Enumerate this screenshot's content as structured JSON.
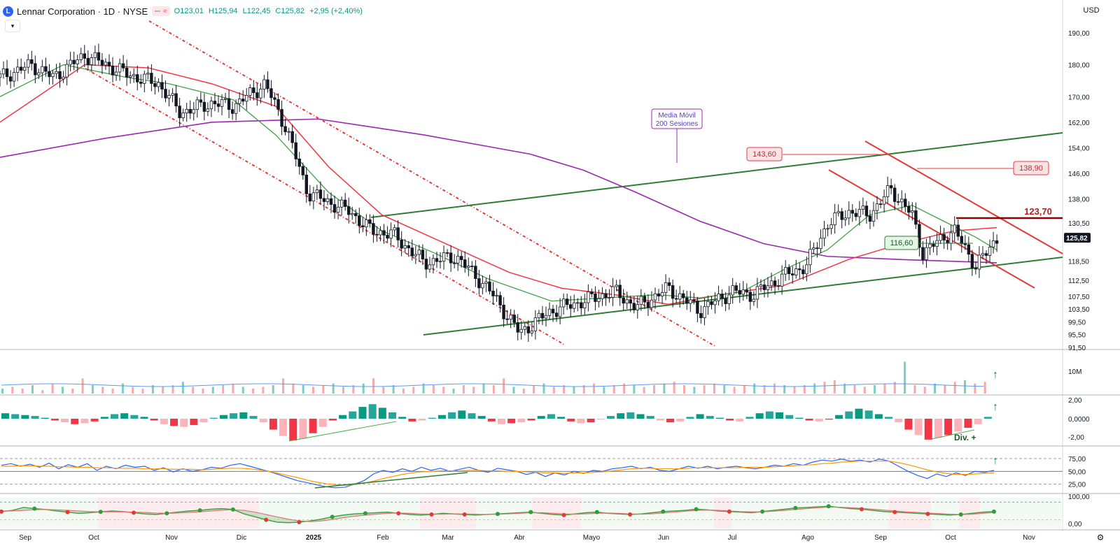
{
  "header": {
    "logo_letter": "L",
    "title": "Lennar Corporation · 1D · NYSE",
    "pill_text": "≈",
    "open": "O123,01",
    "high": "H125,94",
    "low": "L122,45",
    "close": "C125,82",
    "change": "+2,95 (+2,40%)",
    "collapse_icon": "chevron-down-icon",
    "currency": "USD"
  },
  "colors": {
    "up": "#089981",
    "down": "#f23645",
    "ma_fast": "#43a047",
    "ma_mid": "#f23645",
    "ma_200": "#9c27b0",
    "trend_green": "#2e7d32",
    "trend_red": "#e53935",
    "rsi": "#2962ff",
    "rsi_ma": "#ff9800"
  },
  "chart_data": [
    {
      "type": "candlestick",
      "title": "",
      "ylim": [
        91.5,
        194
      ],
      "y_ticks": [
        "190,00",
        "180,00",
        "170,00",
        "162,00",
        "154,00",
        "146,00",
        "138,00",
        "130,50",
        "125,82",
        "118,50",
        "112,50",
        "107,50",
        "103,50",
        "99,50",
        "95,50",
        "91,50"
      ],
      "x_ticks": [
        "Sep",
        "Oct",
        "Nov",
        "Dic",
        "2025",
        "Feb",
        "Mar",
        "Abr",
        "Mayo",
        "Jun",
        "Jul",
        "Ago",
        "Sep",
        "Oct",
        "Nov"
      ],
      "last_price": "125,82",
      "close_points": [
        {
          "t": 0,
          "v": 176
        },
        {
          "t": 0.03,
          "v": 180
        },
        {
          "t": 0.05,
          "v": 176
        },
        {
          "t": 0.08,
          "v": 183
        },
        {
          "t": 0.1,
          "v": 180
        },
        {
          "t": 0.12,
          "v": 177
        },
        {
          "t": 0.15,
          "v": 174
        },
        {
          "t": 0.17,
          "v": 165
        },
        {
          "t": 0.2,
          "v": 168
        },
        {
          "t": 0.22,
          "v": 167
        },
        {
          "t": 0.25,
          "v": 174
        },
        {
          "t": 0.27,
          "v": 160
        },
        {
          "t": 0.29,
          "v": 140
        },
        {
          "t": 0.33,
          "v": 134
        },
        {
          "t": 0.35,
          "v": 128
        },
        {
          "t": 0.37,
          "v": 127
        },
        {
          "t": 0.4,
          "v": 118
        },
        {
          "t": 0.43,
          "v": 120
        },
        {
          "t": 0.46,
          "v": 110
        },
        {
          "t": 0.49,
          "v": 96
        },
        {
          "t": 0.52,
          "v": 103
        },
        {
          "t": 0.55,
          "v": 106
        },
        {
          "t": 0.58,
          "v": 109
        },
        {
          "t": 0.6,
          "v": 104
        },
        {
          "t": 0.63,
          "v": 110
        },
        {
          "t": 0.66,
          "v": 103
        },
        {
          "t": 0.69,
          "v": 109
        },
        {
          "t": 0.71,
          "v": 108
        },
        {
          "t": 0.74,
          "v": 114
        },
        {
          "t": 0.76,
          "v": 117
        },
        {
          "t": 0.78,
          "v": 130
        },
        {
          "t": 0.8,
          "v": 134
        },
        {
          "t": 0.82,
          "v": 133
        },
        {
          "t": 0.84,
          "v": 141
        },
        {
          "t": 0.86,
          "v": 133
        },
        {
          "t": 0.87,
          "v": 121
        },
        {
          "t": 0.89,
          "v": 126
        },
        {
          "t": 0.9,
          "v": 128
        },
        {
          "t": 0.92,
          "v": 117
        },
        {
          "t": 0.93,
          "v": 121
        },
        {
          "t": 0.94,
          "v": 125.82
        }
      ],
      "ma_200": [
        [
          0,
          151
        ],
        [
          0.1,
          157
        ],
        [
          0.2,
          162
        ],
        [
          0.3,
          163
        ],
        [
          0.4,
          158
        ],
        [
          0.5,
          152
        ],
        [
          0.55,
          147
        ],
        [
          0.6,
          140
        ],
        [
          0.66,
          131
        ],
        [
          0.72,
          124
        ],
        [
          0.78,
          120
        ],
        [
          0.85,
          119
        ],
        [
          0.94,
          118
        ]
      ],
      "ma_slow": [
        [
          0,
          162
        ],
        [
          0.08,
          180
        ],
        [
          0.14,
          179
        ],
        [
          0.2,
          174
        ],
        [
          0.26,
          167
        ],
        [
          0.31,
          148
        ],
        [
          0.36,
          133
        ],
        [
          0.42,
          124
        ],
        [
          0.48,
          115
        ],
        [
          0.53,
          110
        ],
        [
          0.58,
          108
        ],
        [
          0.63,
          105
        ],
        [
          0.68,
          108
        ],
        [
          0.74,
          111
        ],
        [
          0.8,
          119
        ],
        [
          0.85,
          124
        ],
        [
          0.9,
          128
        ],
        [
          0.94,
          129
        ]
      ],
      "ma_fast": [
        [
          0,
          170
        ],
        [
          0.06,
          180
        ],
        [
          0.12,
          176
        ],
        [
          0.16,
          174
        ],
        [
          0.22,
          169
        ],
        [
          0.26,
          158
        ],
        [
          0.31,
          140
        ],
        [
          0.36,
          128
        ],
        [
          0.41,
          121
        ],
        [
          0.46,
          113
        ],
        [
          0.52,
          106
        ],
        [
          0.57,
          107
        ],
        [
          0.62,
          108
        ],
        [
          0.66,
          107
        ],
        [
          0.7,
          109
        ],
        [
          0.74,
          116
        ],
        [
          0.78,
          122
        ],
        [
          0.82,
          133
        ],
        [
          0.86,
          136
        ],
        [
          0.89,
          131
        ],
        [
          0.92,
          126
        ],
        [
          0.94,
          122
        ]
      ],
      "annotations": [
        {
          "label": "Media Móvil\n200 Sesiones"
        },
        {
          "label": "143,60",
          "value": 143.6
        },
        {
          "label": "138,90",
          "value": 138.9
        },
        {
          "label": "116,60",
          "value": 116.6
        },
        {
          "label": "123,70",
          "value": 123.7
        }
      ]
    },
    {
      "type": "bar",
      "title": "",
      "y_ticks": [
        "10M"
      ],
      "series": [
        {
          "values": [
            3,
            4,
            3,
            5,
            2,
            6,
            4,
            3,
            9,
            5,
            4,
            3,
            6,
            4,
            3,
            5,
            4,
            5,
            7,
            4,
            3,
            4,
            5,
            6,
            4,
            3,
            4,
            5,
            9,
            6,
            5,
            4,
            5,
            6,
            4,
            5,
            6,
            9,
            4,
            5,
            3,
            4,
            6,
            5,
            4,
            3,
            5,
            4,
            6,
            5,
            9,
            4,
            3,
            5,
            6,
            4,
            5,
            4,
            5,
            6,
            4,
            5,
            6,
            5,
            4,
            5,
            6,
            7,
            5,
            4,
            5,
            6,
            5,
            4,
            5,
            6,
            5,
            6,
            5,
            4,
            5,
            6,
            7,
            8,
            6,
            5,
            4,
            5,
            6,
            7,
            19,
            5,
            4,
            6,
            5,
            7,
            8,
            6,
            7
          ]
        }
      ]
    },
    {
      "type": "bar",
      "title": "",
      "y_ticks": [
        "2,00",
        "0,0000",
        "-2,00"
      ],
      "annotation": "Div. +",
      "series": [
        {
          "values": [
            0.6,
            0.5,
            0.4,
            0.3,
            0.1,
            -0.2,
            -0.4,
            -0.6,
            -0.5,
            -0.3,
            0.2,
            0.5,
            0.6,
            0.4,
            0.2,
            -0.2,
            -0.6,
            -0.8,
            -0.9,
            -0.7,
            -0.4,
            0.1,
            0.4,
            0.6,
            0.7,
            0.3,
            -0.4,
            -1.2,
            -1.9,
            -2.4,
            -2.2,
            -1.6,
            -0.9,
            -0.2,
            0.4,
            0.8,
            1.3,
            1.6,
            1.2,
            0.7,
            0.2,
            -0.3,
            -0.2,
            0.1,
            0.4,
            0.7,
            0.9,
            0.6,
            0.3,
            -0.3,
            -0.6,
            -0.5,
            -0.4,
            -0.2,
            0.3,
            0.5,
            0.2,
            -0.3,
            -0.5,
            -0.4,
            -0.1,
            0.3,
            0.6,
            0.7,
            0.5,
            0.3,
            -0.2,
            -0.4,
            -0.3,
            0.2,
            0.5,
            0.3,
            0.1,
            -0.2,
            -0.3,
            0.2,
            0.6,
            0.8,
            0.7,
            0.4,
            0.1,
            -0.2,
            -0.3,
            -0.1,
            0.4,
            0.8,
            1.1,
            0.9,
            0.5,
            0.2,
            -0.4,
            -1.2,
            -1.8,
            -2.3,
            -2.1,
            -1.8,
            -1.4,
            -1.0,
            -0.6,
            0.2
          ]
        }
      ]
    },
    {
      "type": "line",
      "title": "",
      "y_ticks": [
        "75,00",
        "50,00",
        "25,00"
      ],
      "ylim": [
        15,
        90
      ],
      "series": [
        {
          "values": [
            62,
            65,
            60,
            64,
            58,
            66,
            55,
            63,
            58,
            65,
            52,
            60,
            55,
            62,
            58,
            60,
            52,
            57,
            49,
            55,
            50,
            53,
            58,
            56,
            62,
            65,
            60,
            55,
            50,
            44,
            38,
            32,
            28,
            24,
            20,
            18,
            19,
            25,
            32,
            45,
            52,
            48,
            55,
            50,
            58,
            52,
            56,
            50,
            54,
            58,
            52,
            48,
            56,
            53,
            50,
            44,
            48,
            40,
            47,
            43,
            50,
            46,
            52,
            50,
            55,
            57,
            60,
            55,
            58,
            52,
            50,
            55,
            60,
            56,
            60,
            55,
            58,
            60,
            57,
            55,
            58,
            62,
            60,
            65,
            62,
            68,
            72,
            70,
            74,
            70,
            72,
            68,
            74,
            70,
            60,
            50,
            42,
            36,
            45,
            40,
            47,
            42,
            50,
            48,
            52
          ]
        },
        {
          "values": [
            60,
            60,
            61,
            61,
            60,
            60,
            59,
            59,
            58,
            58,
            57,
            57,
            56,
            56,
            56,
            55,
            55,
            55,
            54,
            54,
            54,
            53,
            54,
            55,
            56,
            56,
            55,
            53,
            50,
            46,
            42,
            38,
            33,
            29,
            26,
            24,
            23,
            24,
            27,
            31,
            36,
            40,
            44,
            47,
            49,
            50,
            51,
            51,
            51,
            52,
            52,
            51,
            51,
            50,
            50,
            49,
            48,
            47,
            47,
            46,
            47,
            47,
            48,
            49,
            51,
            53,
            55,
            56,
            56,
            55,
            55,
            55,
            56,
            57,
            57,
            57,
            57,
            57,
            58,
            58,
            58,
            59,
            60,
            61,
            62,
            63,
            65,
            66,
            68,
            69,
            70,
            70,
            70,
            70,
            67,
            63,
            58,
            53,
            49,
            46,
            44,
            44,
            45,
            46,
            47
          ]
        }
      ]
    },
    {
      "type": "area",
      "title": "",
      "y_ticks": [
        "100,00",
        "0,00"
      ],
      "ylim": [
        0,
        100
      ],
      "series": [
        {
          "values": [
            48,
            52,
            62,
            58,
            55,
            50,
            46,
            42,
            44,
            47,
            50,
            48,
            44,
            40,
            38,
            42,
            46,
            50,
            52,
            56,
            58,
            55,
            40,
            30,
            20,
            12,
            10,
            12,
            16,
            22,
            30,
            36,
            40,
            42,
            44,
            46,
            42,
            38,
            36,
            38,
            42,
            40,
            38,
            36,
            38,
            40,
            42,
            44,
            46,
            42,
            38,
            36,
            40,
            44,
            46,
            42,
            40,
            38,
            40,
            44,
            48,
            50,
            52,
            56,
            54,
            50,
            48,
            46,
            44,
            48,
            52,
            56,
            60,
            62,
            64,
            66,
            62,
            58,
            56,
            52,
            48,
            46,
            44,
            42,
            40,
            38,
            36,
            38,
            42,
            46,
            48
          ]
        },
        {
          "values": [
            50,
            50,
            52,
            54,
            55,
            54,
            52,
            50,
            48,
            47,
            47,
            47,
            46,
            45,
            43,
            42,
            43,
            45,
            47,
            50,
            53,
            54,
            52,
            46,
            38,
            30,
            22,
            16,
            14,
            16,
            21,
            27,
            32,
            36,
            39,
            42,
            43,
            42,
            40,
            39,
            39,
            40,
            40,
            39,
            38,
            39,
            40,
            42,
            44,
            44,
            42,
            40,
            39,
            40,
            42,
            43,
            42,
            40,
            39,
            40,
            43,
            46,
            49,
            52,
            53,
            52,
            50,
            48,
            47,
            47,
            49,
            52,
            55,
            58,
            61,
            63,
            63,
            61,
            59,
            56,
            53,
            50,
            47,
            45,
            43,
            41,
            39,
            38,
            39,
            42,
            45
          ]
        }
      ]
    }
  ]
}
